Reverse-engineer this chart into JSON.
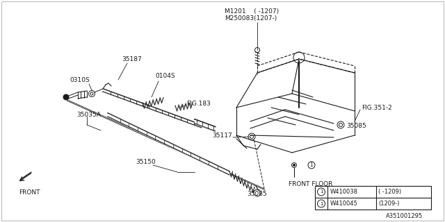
{
  "bg_color": "#ffffff",
  "line_color": "#1a1a1a",
  "fig_id": "A351001295",
  "labels": {
    "M1201_line1": "M1201    〈 -1207〉",
    "M1201_line2": "M250083〈1207-〉",
    "M1201_line1_plain": "M1201    ( -1207)",
    "M1201_line2_plain": "M250083(1207-)",
    "p35187": "35187",
    "p0104S": "0104S",
    "p0310S": "0310S",
    "pFIG103": "FIG.183",
    "p35035A": "35035A",
    "pFIG351": "FIG.351-2",
    "p35117": "35117",
    "p35085a": "35085",
    "p35150": "35150",
    "p35085b": "35085",
    "pFRONT_FLOOR": "FRONT FLOOR",
    "pFRONT": "FRONT",
    "pW410038": "W410038",
    "pW410045": "W410045",
    "pneg1209": "( -1209)",
    "ppos1209": "(1209-)",
    "pfig_id": "A351001295"
  }
}
